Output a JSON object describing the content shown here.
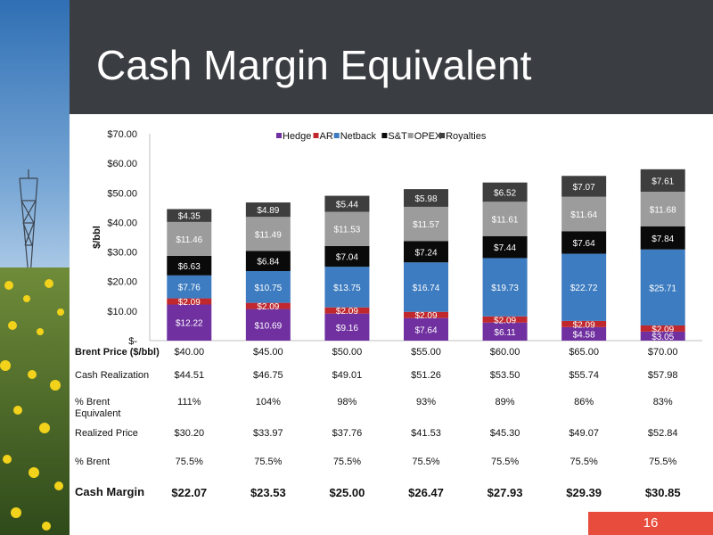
{
  "slide": {
    "title": "Cash Margin Equivalent",
    "page_number": "16"
  },
  "chart_data": {
    "type": "bar",
    "stacked": true,
    "categories": [
      "$40.00",
      "$45.00",
      "$50.00",
      "$55.00",
      "$60.00",
      "$65.00",
      "$70.00"
    ],
    "xlabel": "Brent Price ($/bbl)",
    "ylabel": "$/bbl",
    "ylim": [
      0,
      70
    ],
    "yticks": [
      "$-",
      "$10.00",
      "$20.00",
      "$30.00",
      "$40.00",
      "$50.00",
      "$60.00",
      "$70.00"
    ],
    "legend_position": "top",
    "series": [
      {
        "name": "Hedge",
        "color": "#7030a0",
        "values": [
          12.22,
          10.69,
          9.16,
          7.64,
          6.11,
          4.58,
          3.05
        ],
        "labels": [
          "$12.22",
          "$10.69",
          "$9.16",
          "$7.64",
          "$6.11",
          "$4.58",
          "$3.05"
        ]
      },
      {
        "name": "AR",
        "color": "#c0282d",
        "values": [
          2.09,
          2.09,
          2.09,
          2.09,
          2.09,
          2.09,
          2.09
        ],
        "labels": [
          "$2.09",
          "$2.09",
          "$2.09",
          "$2.09",
          "$2.09",
          "$2.09",
          "$2.09"
        ]
      },
      {
        "name": "Netback",
        "color": "#3d7cc0",
        "values": [
          7.76,
          10.75,
          13.75,
          16.74,
          19.73,
          22.72,
          25.71
        ],
        "labels": [
          "$7.76",
          "$10.75",
          "$13.75",
          "$16.74",
          "$19.73",
          "$22.72",
          "$25.71"
        ]
      },
      {
        "name": "S&T",
        "color": "#0a0a0a",
        "values": [
          6.63,
          6.84,
          7.04,
          7.24,
          7.44,
          7.64,
          7.84
        ],
        "labels": [
          "$6.63",
          "$6.84",
          "$7.04",
          "$7.24",
          "$7.44",
          "$7.64",
          "$7.84"
        ]
      },
      {
        "name": "OPEX",
        "color": "#9c9c9c",
        "values": [
          11.46,
          11.49,
          11.53,
          11.57,
          11.61,
          11.64,
          11.68
        ],
        "labels": [
          "$11.46",
          "$11.49",
          "$11.53",
          "$11.57",
          "$11.61",
          "$11.64",
          "$11.68"
        ]
      },
      {
        "name": "Royalties",
        "color": "#3e3e3e",
        "values": [
          4.35,
          4.89,
          5.44,
          5.98,
          6.52,
          7.07,
          7.61
        ],
        "labels": [
          "$4.35",
          "$4.89",
          "$5.44",
          "$5.98",
          "$6.52",
          "$7.07",
          "$7.61"
        ]
      }
    ]
  },
  "table": {
    "rows": [
      {
        "label": "Cash Realization",
        "values": [
          "$44.51",
          "$46.75",
          "$49.01",
          "$51.26",
          "$53.50",
          "$55.74",
          "$57.98"
        ]
      },
      {
        "label": "% Brent Equivalent",
        "values": [
          "111%",
          "104%",
          "98%",
          "93%",
          "89%",
          "86%",
          "83%"
        ]
      },
      {
        "label": "Realized Price",
        "values": [
          "$30.20",
          "$33.97",
          "$37.76",
          "$41.53",
          "$45.30",
          "$49.07",
          "$52.84"
        ]
      },
      {
        "label": "% Brent",
        "values": [
          "75.5%",
          "75.5%",
          "75.5%",
          "75.5%",
          "75.5%",
          "75.5%",
          "75.5%"
        ]
      },
      {
        "label": "Cash Margin",
        "values": [
          "$22.07",
          "$23.53",
          "$25.00",
          "$26.47",
          "$27.93",
          "$29.39",
          "$30.85"
        ]
      }
    ]
  }
}
